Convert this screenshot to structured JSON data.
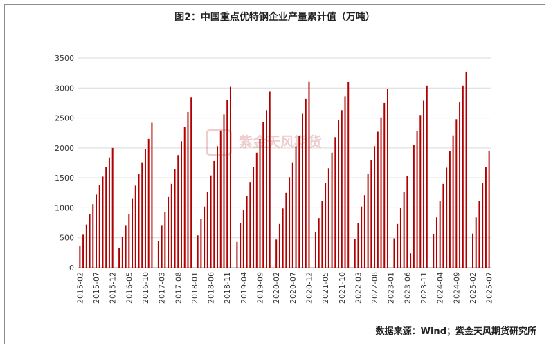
{
  "header": {
    "title": "图2：中国重点优特钢企业产量累计值（万吨）"
  },
  "footer": {
    "source": "数据来源：Wind；紫金天风期货研究所"
  },
  "watermark": {
    "text": "紫金天风期货"
  },
  "chart_data": {
    "type": "bar",
    "title": "图2：中国重点优特钢企业产量累计值（万吨）",
    "xlabel": "",
    "ylabel": "",
    "ylim": [
      0,
      3500
    ],
    "yticks": [
      0,
      500,
      1000,
      1500,
      2000,
      2500,
      3000,
      3500
    ],
    "grid": true,
    "legend": "none",
    "bar_color": "#b00000",
    "x_tick_labels": [
      "2015-02",
      "2015-07",
      "2015-12",
      "2016-05",
      "2016-10",
      "2017-03",
      "2017-08",
      "2018-01",
      "2018-06",
      "2018-11",
      "2019-04",
      "2019-09",
      "2020-02",
      "2020-07",
      "2020-12",
      "2021-05",
      "2021-10",
      "2022-03",
      "2022-08",
      "2023-01",
      "2023-06",
      "2023-11",
      "2024-04",
      "2024-09",
      "2025-02",
      "2025-07"
    ],
    "years": [
      {
        "year": 2015,
        "values": [
          370,
          550,
          720,
          900,
          1060,
          1220,
          1380,
          1520,
          1680,
          1840,
          2000
        ]
      },
      {
        "year": 2016,
        "values": [
          330,
          520,
          700,
          900,
          1160,
          1370,
          1560,
          1760,
          1980,
          2150,
          2420
        ]
      },
      {
        "year": 2017,
        "values": [
          450,
          700,
          930,
          1180,
          1400,
          1640,
          1880,
          2110,
          2350,
          2600,
          2850
        ]
      },
      {
        "year": 2018,
        "values": [
          540,
          810,
          1020,
          1260,
          1540,
          1780,
          2030,
          2290,
          2560,
          2800,
          3020
        ]
      },
      {
        "year": 2019,
        "values": [
          430,
          740,
          960,
          1200,
          1430,
          1680,
          1920,
          2150,
          2430,
          2630,
          2940
        ]
      },
      {
        "year": 2020,
        "values": [
          470,
          730,
          990,
          1250,
          1510,
          1760,
          2030,
          2200,
          2570,
          2820,
          3110
        ]
      },
      {
        "year": 2021,
        "values": [
          590,
          830,
          1120,
          1410,
          1660,
          1920,
          2180,
          2470,
          2630,
          2860,
          3100
        ]
      },
      {
        "year": 2022,
        "values": [
          480,
          750,
          1020,
          1210,
          1560,
          1790,
          2030,
          2270,
          2510,
          2750,
          2990
        ]
      },
      {
        "year": 2023,
        "values": [
          490,
          730,
          1000,
          1270,
          1530,
          240,
          2050,
          2280,
          2550,
          2790,
          3040
        ]
      },
      {
        "year": 2024,
        "values": [
          560,
          840,
          1110,
          1400,
          1670,
          1940,
          2210,
          2480,
          2760,
          3040,
          3270
        ]
      },
      {
        "year": 2025,
        "values": [
          570,
          840,
          1110,
          1410,
          1680,
          1950
        ]
      }
    ]
  }
}
